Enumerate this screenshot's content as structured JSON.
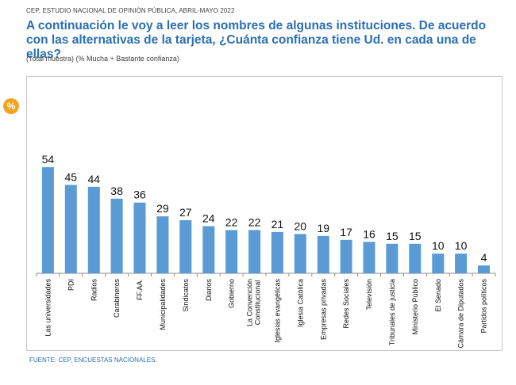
{
  "header": {
    "source_line": "CEP, ESTUDIO NACIONAL DE OPINIÓN PÚBLICA, ABRIL-MAYO 2022",
    "question": "A continuación le voy a leer los nombres de algunas instituciones. De acuerdo con las alternativas de la tarjeta, ¿Cuánta confianza tiene Ud. en cada una de ellas?",
    "subtitle": "(Total muestra) (% Mucha + Bastante confianza)"
  },
  "badge": {
    "label": "%"
  },
  "footer": {
    "text": "FUENTE: CEP, ENCUESTAS NACIONALES."
  },
  "colors": {
    "bar": "#5b9bd5",
    "title": "#2b6fb3",
    "badge": "#f5a21f"
  },
  "chart_data": {
    "type": "bar",
    "title": "",
    "xlabel": "",
    "ylabel": "",
    "ylim": [
      0,
      60
    ],
    "grid": false,
    "categories": [
      "Las universidades",
      "PDI",
      "Radios",
      "Carabineros",
      "FF.AA.",
      "Municipalidades",
      "Sindicatos",
      "Diarios",
      "Gobierno",
      "La Convención Constitucional",
      "Iglesias evangélicas",
      "Iglesia Católica",
      "Empresas privadas",
      "Redes Sociales",
      "Televisión",
      "Tribunales de justicia",
      "Ministerio Público",
      "El Senado",
      "La Cámara de Diputados",
      "Partidos políticos"
    ],
    "values": [
      54,
      45,
      44,
      38,
      36,
      29,
      27,
      24,
      22,
      22,
      21,
      20,
      19,
      17,
      16,
      15,
      15,
      10,
      10,
      4
    ]
  }
}
